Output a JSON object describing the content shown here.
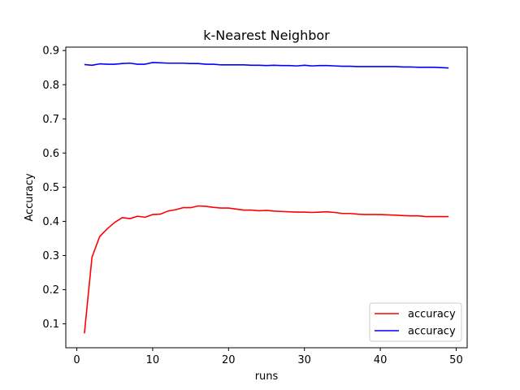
{
  "chart_data": {
    "type": "line",
    "title": "k-Nearest Neighbor",
    "xlabel": "runs",
    "ylabel": "Accuracy",
    "xlim": [
      -1.45,
      51.45
    ],
    "ylim": [
      0.03,
      0.91
    ],
    "xticks": [
      0,
      10,
      20,
      30,
      40,
      50
    ],
    "yticks": [
      0.1,
      0.2,
      0.3,
      0.4,
      0.5,
      0.6,
      0.7,
      0.8,
      0.9
    ],
    "grid": false,
    "legend_position": "lower-right",
    "x": [
      1,
      2,
      3,
      4,
      5,
      6,
      7,
      8,
      9,
      10,
      11,
      12,
      13,
      14,
      15,
      16,
      17,
      18,
      19,
      20,
      21,
      22,
      23,
      24,
      25,
      26,
      27,
      28,
      29,
      30,
      31,
      32,
      33,
      34,
      35,
      36,
      37,
      38,
      39,
      40,
      41,
      42,
      43,
      44,
      45,
      46,
      47,
      48,
      49
    ],
    "series": [
      {
        "name": "accuracy",
        "color": "#ff0000",
        "values": [
          0.072,
          0.295,
          0.355,
          0.378,
          0.397,
          0.411,
          0.408,
          0.415,
          0.412,
          0.42,
          0.421,
          0.43,
          0.434,
          0.44,
          0.44,
          0.445,
          0.444,
          0.441,
          0.439,
          0.439,
          0.436,
          0.433,
          0.433,
          0.431,
          0.432,
          0.43,
          0.429,
          0.428,
          0.427,
          0.427,
          0.426,
          0.427,
          0.428,
          0.426,
          0.423,
          0.423,
          0.421,
          0.42,
          0.42,
          0.42,
          0.419,
          0.418,
          0.417,
          0.416,
          0.416,
          0.414,
          0.414,
          0.414,
          0.414
        ]
      },
      {
        "name": "accuracy",
        "color": "#0000ff",
        "values": [
          0.859,
          0.857,
          0.861,
          0.86,
          0.86,
          0.862,
          0.863,
          0.86,
          0.86,
          0.865,
          0.864,
          0.863,
          0.863,
          0.863,
          0.862,
          0.862,
          0.86,
          0.86,
          0.858,
          0.858,
          0.858,
          0.858,
          0.857,
          0.857,
          0.856,
          0.857,
          0.856,
          0.856,
          0.855,
          0.857,
          0.855,
          0.856,
          0.856,
          0.855,
          0.854,
          0.854,
          0.853,
          0.853,
          0.853,
          0.853,
          0.853,
          0.853,
          0.852,
          0.852,
          0.851,
          0.851,
          0.851,
          0.85,
          0.849
        ]
      }
    ]
  }
}
